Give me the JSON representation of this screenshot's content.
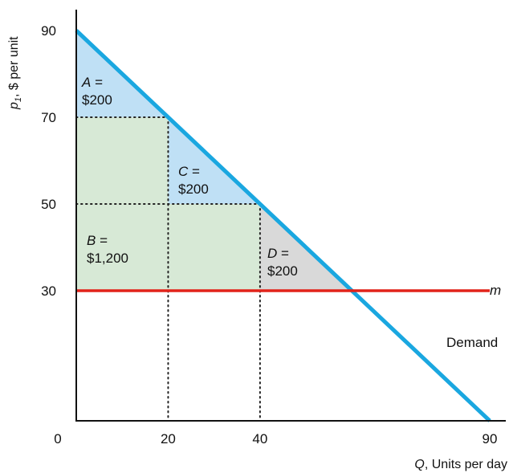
{
  "chart_data": {
    "type": "line",
    "xlabel": {
      "var": "Q",
      "rest": ", Units per day"
    },
    "ylabel": {
      "var": "p",
      "sub": "1",
      "rest": ", $ per unit"
    },
    "xlim": [
      0,
      90
    ],
    "ylim": [
      0,
      90
    ],
    "x_ticks": [
      {
        "value": 0,
        "label": "0"
      },
      {
        "value": 20,
        "label": "20"
      },
      {
        "value": 40,
        "label": "40"
      },
      {
        "value": 90,
        "label": "90"
      }
    ],
    "y_ticks": [
      {
        "value": 30,
        "label": "30"
      },
      {
        "value": 50,
        "label": "50"
      },
      {
        "value": 70,
        "label": "70"
      },
      {
        "value": 90,
        "label": "90"
      }
    ],
    "series": [
      {
        "name": "Demand",
        "color": "#1aa7e0",
        "points": [
          [
            0,
            90
          ],
          [
            90,
            0
          ]
        ]
      },
      {
        "name": "m",
        "color": "#e2231a",
        "points": [
          [
            0,
            30
          ],
          [
            90,
            30
          ]
        ]
      }
    ],
    "regions": [
      {
        "id": "A",
        "letter": "A",
        "value": "$200",
        "color": "#bfe0f5",
        "polygon": [
          [
            0,
            90
          ],
          [
            20,
            70
          ],
          [
            0,
            70
          ]
        ]
      },
      {
        "id": "B",
        "letter": "B",
        "value": "$1,200",
        "color": "#d7e9d6",
        "polygon": [
          [
            0,
            70
          ],
          [
            20,
            70
          ],
          [
            40,
            50
          ],
          [
            60,
            30
          ],
          [
            0,
            30
          ]
        ]
      },
      {
        "id": "C",
        "letter": "C",
        "value": "$200",
        "color": "#bfe0f5",
        "polygon": [
          [
            20,
            70
          ],
          [
            40,
            50
          ],
          [
            20,
            50
          ]
        ]
      },
      {
        "id": "D",
        "letter": "D",
        "value": "$200",
        "color": "#d9d9d9",
        "polygon": [
          [
            40,
            50
          ],
          [
            60,
            30
          ],
          [
            40,
            30
          ]
        ]
      }
    ],
    "dotted_lines": [
      [
        [
          0,
          70
        ],
        [
          20,
          70
        ]
      ],
      [
        [
          20,
          70
        ],
        [
          20,
          0
        ]
      ],
      [
        [
          0,
          50
        ],
        [
          40,
          50
        ]
      ],
      [
        [
          40,
          50
        ],
        [
          40,
          0
        ]
      ]
    ]
  }
}
